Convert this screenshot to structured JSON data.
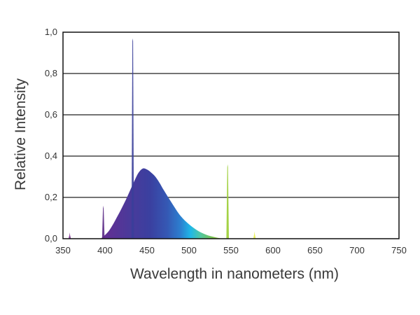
{
  "chart_data": {
    "type": "area",
    "title": "",
    "xlabel": "Wavelength in nanometers (nm)",
    "ylabel": "Relative Intensity",
    "xlim": [
      350,
      750
    ],
    "ylim": [
      0,
      1.0
    ],
    "x_ticks": [
      "350",
      "400",
      "450",
      "500",
      "550",
      "600",
      "650",
      "700",
      "750"
    ],
    "y_ticks": [
      "0,0",
      "0,2",
      "0,4",
      "0,6",
      "0,8",
      "1,0"
    ],
    "grid": "horizontal",
    "legend": "none",
    "series": [
      {
        "type": "area",
        "x": [
          395,
          405,
          415,
          425,
          435,
          440,
          445,
          450,
          455,
          460,
          465,
          470,
          480,
          490,
          500,
          510,
          520,
          530,
          540
        ],
        "y": [
          0.0,
          0.04,
          0.11,
          0.19,
          0.28,
          0.32,
          0.34,
          0.335,
          0.32,
          0.3,
          0.27,
          0.235,
          0.17,
          0.11,
          0.07,
          0.04,
          0.02,
          0.008,
          0.0
        ]
      }
    ],
    "peaks": [
      {
        "x": 358,
        "y": 0.03,
        "color": "#7b2f8f"
      },
      {
        "x": 398,
        "y": 0.16,
        "color": "#5b2a86"
      },
      {
        "x": 433,
        "y": 0.97,
        "color": "#3a3f9a"
      },
      {
        "x": 546,
        "y": 0.36,
        "color": "#9acd32"
      },
      {
        "x": 578,
        "y": 0.035,
        "color": "#e8f04a"
      }
    ],
    "colors": {
      "violet": "#6a2c91",
      "indigo": "#3c3c96",
      "blue": "#3558b4",
      "cyan": "#1fb8e8",
      "teal": "#52c7a0",
      "green": "#7cc142",
      "yellow_green": "#b8d64a",
      "grid": "#222222",
      "axis": "#111111",
      "text": "#333333"
    }
  }
}
